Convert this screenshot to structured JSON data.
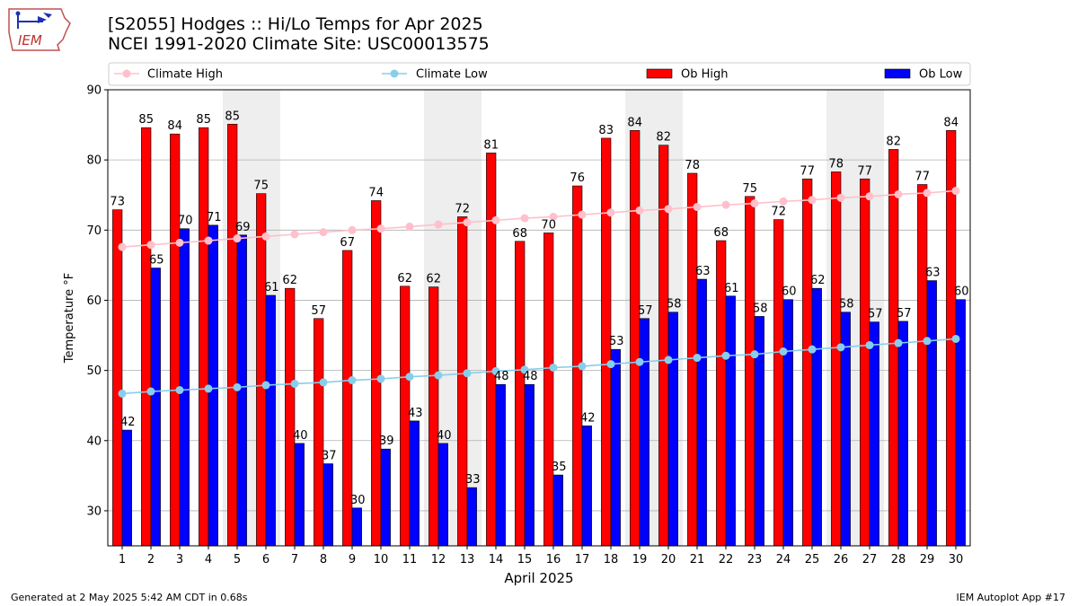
{
  "header": {
    "title_line1": "[S2055] Hodges :: Hi/Lo Temps for Apr 2025",
    "title_line2": "NCEI 1991-2020 Climate Site: USC00013575",
    "logo_text": "IEM"
  },
  "footer": {
    "generated": "Generated at 2 May 2025 5:42 AM CDT in 0.68s",
    "app": "IEM Autoplot App #17"
  },
  "chart_data": {
    "type": "bar",
    "xlabel": "April 2025",
    "ylabel": "Temperature °F",
    "ylim": [
      25,
      90
    ],
    "yticks": [
      30,
      40,
      50,
      60,
      70,
      80,
      90
    ],
    "grid": true,
    "legend_position": "top",
    "categories": [
      "1",
      "2",
      "3",
      "4",
      "5",
      "6",
      "7",
      "8",
      "9",
      "10",
      "11",
      "12",
      "13",
      "14",
      "15",
      "16",
      "17",
      "18",
      "19",
      "20",
      "21",
      "22",
      "23",
      "24",
      "25",
      "26",
      "27",
      "28",
      "29",
      "30"
    ],
    "weekend_days": [
      5,
      6,
      12,
      13,
      19,
      20,
      26,
      27
    ],
    "series": [
      {
        "name": "Ob High",
        "kind": "bar",
        "color": "#ff0000",
        "values": [
          73,
          85,
          84,
          85,
          85,
          75,
          62,
          57,
          67,
          74,
          62,
          62,
          72,
          81,
          68,
          70,
          76,
          83,
          84,
          82,
          78,
          68,
          75,
          72,
          77,
          78,
          77,
          82,
          77,
          84
        ],
        "plotted": [
          72.9,
          84.6,
          83.7,
          84.6,
          85.1,
          75.2,
          61.7,
          57.4,
          67.1,
          74.2,
          62.0,
          61.9,
          71.9,
          81.0,
          68.4,
          69.6,
          76.3,
          83.1,
          84.2,
          82.1,
          78.1,
          68.5,
          74.8,
          71.5,
          77.3,
          78.3,
          77.3,
          81.5,
          76.5,
          84.2
        ]
      },
      {
        "name": "Ob Low",
        "kind": "bar",
        "color": "#0000ff",
        "values": [
          42,
          65,
          70,
          71,
          69,
          61,
          40,
          37,
          30,
          39,
          43,
          40,
          33,
          48,
          48,
          35,
          42,
          53,
          57,
          58,
          63,
          61,
          58,
          60,
          62,
          58,
          57,
          57,
          63,
          60
        ],
        "plotted": [
          41.5,
          64.6,
          70.2,
          70.7,
          69.3,
          60.7,
          39.6,
          36.7,
          30.4,
          38.8,
          42.8,
          39.6,
          33.3,
          48.0,
          48.0,
          35.1,
          42.1,
          53.0,
          57.4,
          58.3,
          63.0,
          60.6,
          57.7,
          60.1,
          61.7,
          58.3,
          56.9,
          57.0,
          62.8,
          60.1
        ]
      },
      {
        "name": "Climate High",
        "kind": "line",
        "color": "#ffc0cb",
        "values": [
          67.6,
          67.9,
          68.2,
          68.5,
          68.8,
          69.1,
          69.4,
          69.7,
          70.0,
          70.2,
          70.5,
          70.8,
          71.1,
          71.4,
          71.7,
          71.9,
          72.2,
          72.5,
          72.8,
          73.0,
          73.3,
          73.6,
          73.8,
          74.1,
          74.3,
          74.6,
          74.8,
          75.1,
          75.3,
          75.6
        ]
      },
      {
        "name": "Climate Low",
        "kind": "line",
        "color": "#87ceeb",
        "values": [
          46.7,
          47.0,
          47.2,
          47.4,
          47.6,
          47.9,
          48.1,
          48.3,
          48.6,
          48.8,
          49.1,
          49.3,
          49.6,
          49.9,
          50.1,
          50.4,
          50.6,
          50.9,
          51.2,
          51.5,
          51.8,
          52.1,
          52.3,
          52.7,
          53.0,
          53.3,
          53.6,
          53.9,
          54.2,
          54.5
        ]
      }
    ]
  }
}
